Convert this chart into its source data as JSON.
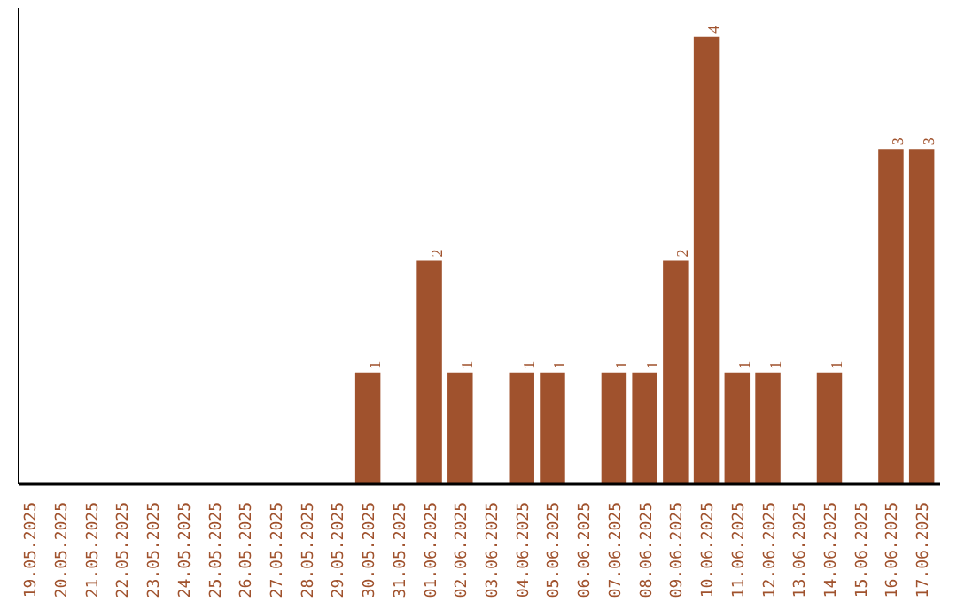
{
  "chart_data": {
    "type": "bar",
    "categories": [
      "19.05.2025",
      "20.05.2025",
      "21.05.2025",
      "22.05.2025",
      "23.05.2025",
      "24.05.2025",
      "25.05.2025",
      "26.05.2025",
      "27.05.2025",
      "28.05.2025",
      "29.05.2025",
      "30.05.2025",
      "31.05.2025",
      "01.06.2025",
      "02.06.2025",
      "03.06.2025",
      "04.06.2025",
      "05.06.2025",
      "06.06.2025",
      "07.06.2025",
      "08.06.2025",
      "09.06.2025",
      "10.06.2025",
      "11.06.2025",
      "12.06.2025",
      "13.06.2025",
      "14.06.2025",
      "15.06.2025",
      "16.06.2025",
      "17.06.2025"
    ],
    "values": [
      0,
      0,
      0,
      0,
      0,
      0,
      0,
      0,
      0,
      0,
      0,
      1,
      0,
      2,
      1,
      0,
      1,
      1,
      0,
      1,
      1,
      2,
      4,
      1,
      1,
      0,
      1,
      0,
      3,
      3
    ],
    "value_labels": [
      null,
      null,
      null,
      null,
      null,
      null,
      null,
      null,
      null,
      null,
      null,
      "1",
      null,
      "2",
      "1",
      null,
      "1",
      "1",
      null,
      "1",
      "1",
      "2",
      "4",
      "1",
      "1",
      null,
      "1",
      null,
      "3",
      "3"
    ],
    "color": "#a0522d",
    "tick_labels": "x"
  }
}
